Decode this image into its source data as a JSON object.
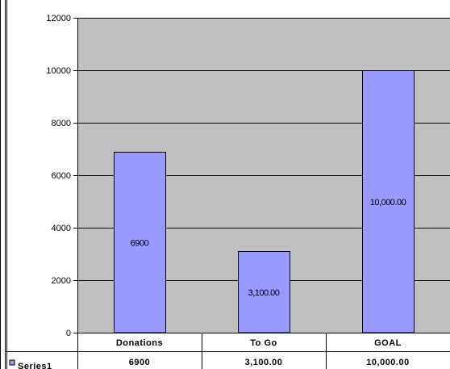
{
  "chart_data": {
    "type": "bar",
    "categories": [
      "Donations",
      "To Go",
      "GOAL"
    ],
    "series": [
      {
        "name": "Series1",
        "values": [
          6900,
          3100,
          10000
        ],
        "labels": [
          "6900",
          "3,100.00",
          "10,000.00"
        ],
        "table_values": [
          "6900",
          "3,100.00",
          "10,000.00"
        ]
      }
    ],
    "ylim": [
      0,
      12000
    ],
    "yticks": [
      "0",
      "2000",
      "4000",
      "6000",
      "8000",
      "10000",
      "12000"
    ],
    "ytick_values": [
      0,
      2000,
      4000,
      6000,
      8000,
      10000,
      12000
    ],
    "grid": true,
    "legend": "data-table-left",
    "colors": {
      "plot_area": "#c0c0c0",
      "bar_fill": "#9999ff",
      "bar_stroke": "#000000",
      "grid": "#000000"
    }
  }
}
